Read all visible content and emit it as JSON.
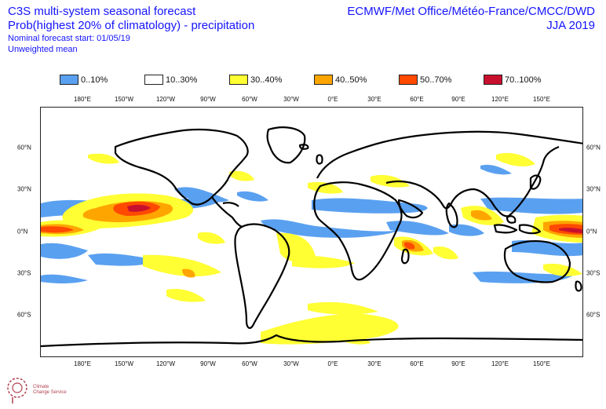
{
  "header": {
    "title": "C3S multi-system seasonal forecast",
    "subtitle": "Prob(highest 20% of climatology) - precipitation",
    "forecast_start": "Nominal forecast start: 01/05/19",
    "mean_type": "Unweighted mean",
    "providers": "ECMWF/Met Office/Météo-France/CMCC/DWD",
    "season": "JJA 2019"
  },
  "legend": [
    {
      "label": "0..10%",
      "color": "#5aa0f0"
    },
    {
      "label": "10..30%",
      "color": "#ffffff"
    },
    {
      "label": "30..40%",
      "color": "#ffff33"
    },
    {
      "label": "40..50%",
      "color": "#ffa500"
    },
    {
      "label": "50..70%",
      "color": "#ff4a00"
    },
    {
      "label": "70..100%",
      "color": "#c8102e"
    }
  ],
  "axes": {
    "lon_top": [
      "180°E",
      "150°W",
      "120°W",
      "90°W",
      "60°W",
      "30°W",
      "0°E",
      "30°E",
      "60°E",
      "90°E",
      "120°E",
      "150°E"
    ],
    "lon_bottom": [
      "180°E",
      "150°W",
      "120°W",
      "90°W",
      "60°W",
      "30°W",
      "0°E",
      "30°E",
      "60°E",
      "90°E",
      "120°E",
      "150°E"
    ],
    "lat_left": [
      "60°N",
      "30°N",
      "0°N",
      "30°S",
      "60°S"
    ],
    "lat_right": [
      "60°N",
      "30°N",
      "0°N",
      "30°S",
      "60°S"
    ]
  },
  "logo": {
    "line1": "Climate",
    "line2": "Change Service"
  }
}
